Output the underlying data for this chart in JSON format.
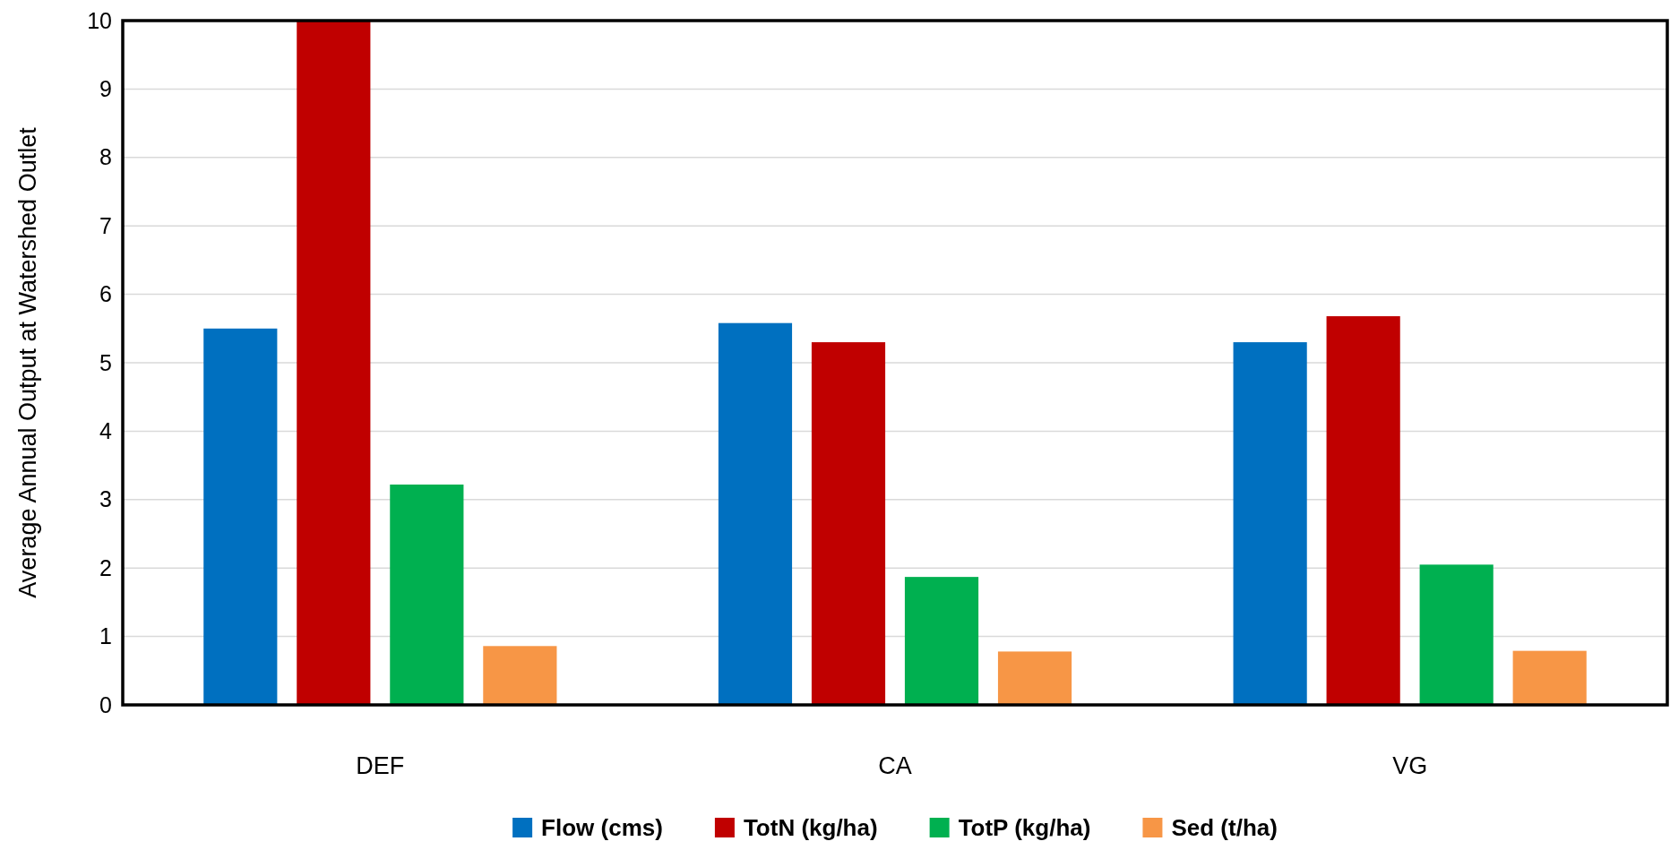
{
  "chart_data": {
    "type": "bar",
    "ylabel": "Average Annual Output at Watershed Outlet",
    "categories": [
      "DEF",
      "CA",
      "VG"
    ],
    "series": [
      {
        "name": "Flow (cms)",
        "color": "#0070c0",
        "values": [
          5.5,
          5.58,
          5.3
        ]
      },
      {
        "name": "TotN (kg/ha)",
        "color": "#c00000",
        "values": [
          10,
          5.3,
          5.68
        ]
      },
      {
        "name": "TotP (kg/ha)",
        "color": "#00b050",
        "values": [
          3.22,
          1.87,
          2.05
        ]
      },
      {
        "name": "Sed (t/ha)",
        "color": "#f79646",
        "values": [
          0.86,
          0.78,
          0.79
        ]
      }
    ],
    "ylim": [
      0,
      10
    ],
    "yticks": [
      0,
      1,
      2,
      3,
      4,
      5,
      6,
      7,
      8,
      9,
      10
    ],
    "grid": "y",
    "legend": "bottom"
  }
}
